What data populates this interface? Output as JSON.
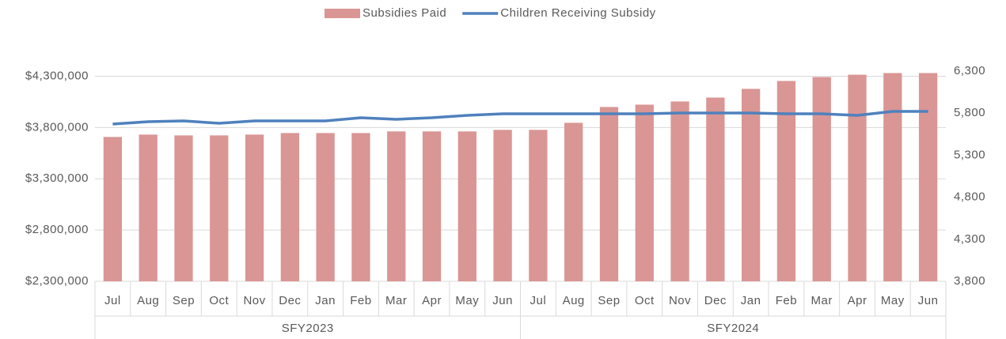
{
  "chart_data": {
    "type": "bar_line",
    "groups": [
      {
        "name": "SFY2023",
        "categories": [
          "Jul",
          "Aug",
          "Sep",
          "Oct",
          "Nov",
          "Dec",
          "Jan",
          "Feb",
          "Mar",
          "Apr",
          "May",
          "Jun"
        ]
      },
      {
        "name": "SFY2024",
        "categories": [
          "Jul",
          "Aug",
          "Sep",
          "Oct",
          "Nov",
          "Dec",
          "Jan",
          "Feb",
          "Mar",
          "Apr",
          "May",
          "Jun"
        ]
      }
    ],
    "series": [
      {
        "name": "Subsidies Paid",
        "type": "bar",
        "color": "#d99694",
        "values": [
          3708000,
          3731000,
          3723000,
          3723000,
          3731000,
          3746000,
          3746000,
          3746000,
          3762000,
          3762000,
          3762000,
          3777000,
          3777000,
          3846000,
          4000000,
          4023000,
          4054000,
          4092000,
          4177000,
          4254000,
          4292000,
          4315000,
          4331000,
          4331000
        ]
      },
      {
        "name": "Children Receiving Subsidy",
        "type": "line",
        "axis": "y2",
        "color": "#4f81bd",
        "values": [
          5670,
          5698,
          5708,
          5680,
          5708,
          5708,
          5708,
          5745,
          5727,
          5745,
          5774,
          5792,
          5792,
          5792,
          5792,
          5792,
          5802,
          5802,
          5802,
          5792,
          5792,
          5774,
          5821,
          5821
        ]
      }
    ],
    "ylim": [
      2300000,
      4350000
    ],
    "yticks": [
      {
        "value": 2300000,
        "label": "$2,300,000"
      },
      {
        "value": 2800000,
        "label": "$2,800,000"
      },
      {
        "value": 3300000,
        "label": "$3,300,000"
      },
      {
        "value": 3800000,
        "label": "$3,800,000"
      },
      {
        "value": 4300000,
        "label": "$4,300,000"
      }
    ],
    "y2lim": [
      3800,
      6300
    ],
    "y2ticks": [
      {
        "value": 3800,
        "label": "3,800"
      },
      {
        "value": 4300,
        "label": "4,300"
      },
      {
        "value": 4800,
        "label": "4,800"
      },
      {
        "value": 5300,
        "label": "5,300"
      },
      {
        "value": 5800,
        "label": "5,800"
      },
      {
        "value": 6300,
        "label": "6,300"
      }
    ],
    "grid": true,
    "legend": "top"
  }
}
